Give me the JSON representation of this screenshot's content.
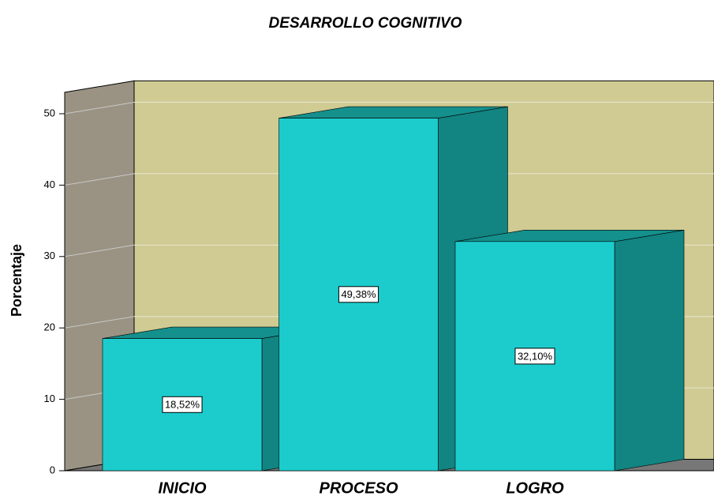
{
  "chart_data": {
    "type": "bar3d",
    "title": "DESARROLLO COGNITIVO",
    "y_label": "Porcentaje",
    "categories": [
      "INICIO",
      "PROCESO",
      "LOGRO"
    ],
    "values": [
      18.52,
      49.38,
      32.1
    ],
    "value_labels": [
      "18,52%",
      "49,38%",
      "32,10%"
    ],
    "color": "#1ccccc",
    "side_color": "#128481",
    "top_color": "#14908d",
    "back_wall_color": "#d0cb93",
    "side_wall_color": "#9a9383",
    "ylim": [
      0,
      53
    ],
    "yticks": [
      0,
      10,
      20,
      30,
      40,
      50
    ],
    "grid": true
  }
}
